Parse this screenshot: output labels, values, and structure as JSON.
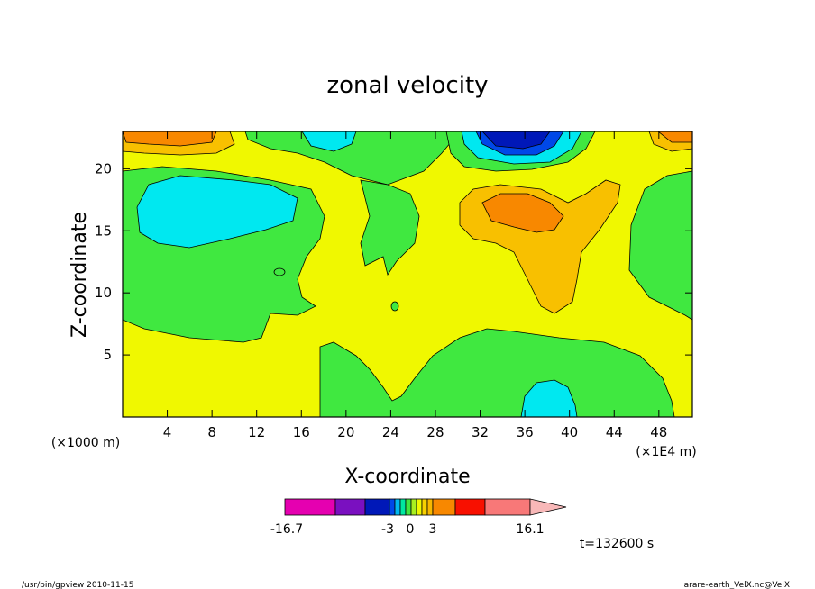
{
  "chart_data": {
    "type": "heatmap",
    "title": "zonal velocity",
    "xlabel": "X-coordinate",
    "ylabel": "Z-coordinate",
    "x_unit_left": "(×1000 m)",
    "x_unit_right": "(×1E4 m)",
    "xlim": [
      0,
      51
    ],
    "ylim": [
      0,
      23
    ],
    "x_ticks": [
      4,
      8,
      12,
      16,
      20,
      24,
      28,
      32,
      36,
      40,
      44,
      48
    ],
    "y_ticks": [
      5,
      10,
      15,
      20
    ],
    "colorbar": {
      "min_label": "-16.7",
      "max_label": "16.1",
      "tick_labels": [
        "-3",
        "0",
        "3"
      ],
      "colors": [
        "#e500b0",
        "#7a10c0",
        "#0018b8",
        "#0048e8",
        "#00b8f0",
        "#00e8a0",
        "#40e840",
        "#a8f020",
        "#f0f800",
        "#f8d000",
        "#f8b800",
        "#f88800",
        "#f81000",
        "#f87878",
        "#f8b8b8"
      ]
    },
    "time_label": "t=132600 s",
    "regions": [
      {
        "name": "yellow-background",
        "level": "0 to 3",
        "color": "#f0f800"
      },
      {
        "name": "lower-right-green",
        "level": "-3 to 0",
        "color": "#40e840"
      },
      {
        "name": "upper-left-cyan",
        "level": "below -3",
        "color": "#00e8f0"
      },
      {
        "name": "top-right-navy",
        "level": "strong negative",
        "color": "#0018b8"
      },
      {
        "name": "mid-right-orange",
        "level": "3 to 6",
        "color": "#f88800"
      }
    ]
  },
  "footer": {
    "left": "/usr/bin/gpview   2010-11-15",
    "right": "arare-earth_VelX.nc@VelX"
  }
}
